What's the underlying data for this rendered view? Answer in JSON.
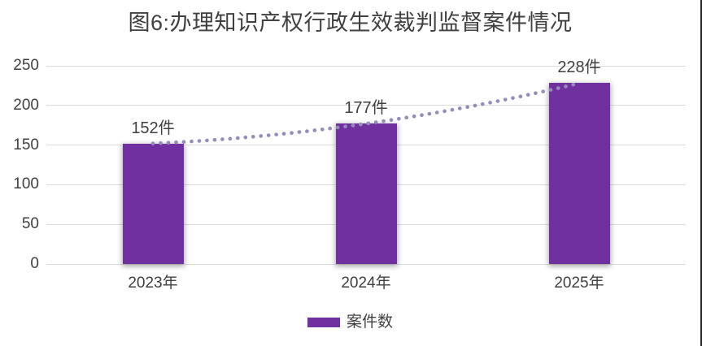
{
  "chart_data": {
    "type": "bar",
    "title": "图6:办理知识产权行政生效裁判监督案件情况",
    "categories": [
      "2023年",
      "2024年",
      "2025年"
    ],
    "series": [
      {
        "name": "案件数",
        "values": [
          152,
          177,
          228
        ]
      }
    ],
    "data_labels": [
      "152件",
      "177件",
      "228件"
    ],
    "ylim": [
      0,
      250
    ],
    "yticks": [
      0,
      50,
      100,
      150,
      200,
      250
    ],
    "grid": true,
    "legend_position": "bottom",
    "trendline": {
      "style": "dotted",
      "on_series": "案件数"
    }
  },
  "colors": {
    "bar": "#7030A0",
    "trendline": "#968CBC",
    "gridline": "#DBDBDB",
    "text": "#404040"
  },
  "legend": {
    "items": [
      {
        "label": "案件数",
        "swatch_color": "#7030A0"
      }
    ]
  }
}
